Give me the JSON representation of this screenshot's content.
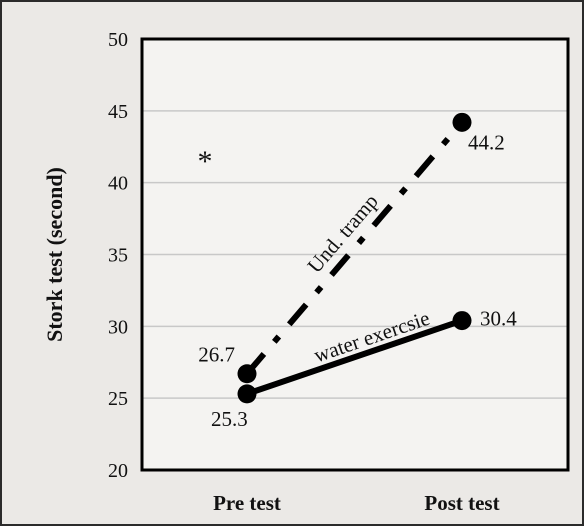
{
  "chart_data": {
    "type": "line",
    "title": "",
    "xlabel": "",
    "ylabel": "Stork test (second)",
    "categories": [
      "Pre test",
      "Post test"
    ],
    "ylim": [
      20,
      50
    ],
    "yticks": [
      20,
      25,
      30,
      35,
      40,
      45,
      50
    ],
    "grid": true,
    "series": [
      {
        "name": "Und. tramp",
        "values": [
          26.7,
          44.2
        ],
        "labels": [
          "26.7",
          "44.2"
        ],
        "line_style": "dash-dot"
      },
      {
        "name": "water exercsie",
        "values": [
          25.3,
          30.4
        ],
        "labels": [
          "25.3",
          "30.4"
        ],
        "line_style": "solid"
      }
    ],
    "annotations": [
      {
        "text": "*",
        "category": "Pre test",
        "y": 42
      }
    ]
  },
  "colors": {
    "line": "#000000",
    "grid": "#c8c8c8",
    "plot_bg": "#f4f3f1",
    "panel_bg": "#ebe9e6"
  }
}
